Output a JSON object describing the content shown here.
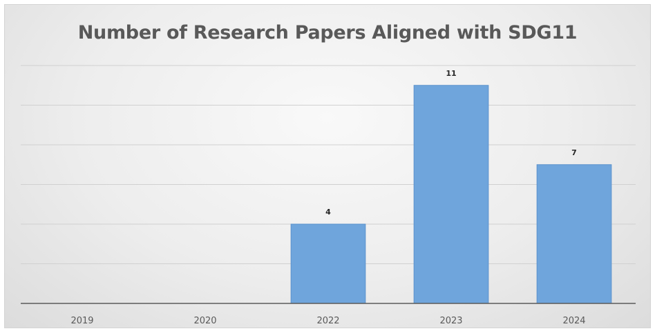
{
  "chart_data": {
    "type": "bar",
    "title": "Number of Research Papers Aligned with SDG11",
    "categories": [
      "2019",
      "2020",
      "2022",
      "2023",
      "2024"
    ],
    "values": [
      0,
      0,
      4,
      11,
      7
    ],
    "data_labels": [
      "",
      "",
      "4",
      "11",
      "7"
    ],
    "xlabel": "",
    "ylabel": "",
    "ylim": [
      0,
      12
    ],
    "grid": true,
    "legend": "none",
    "bar_color": "#6fa5dc",
    "bar_edge_color": "#5b92cc",
    "gridline_color": "#d0d0d0",
    "axis_color": "#5a5a5a"
  }
}
